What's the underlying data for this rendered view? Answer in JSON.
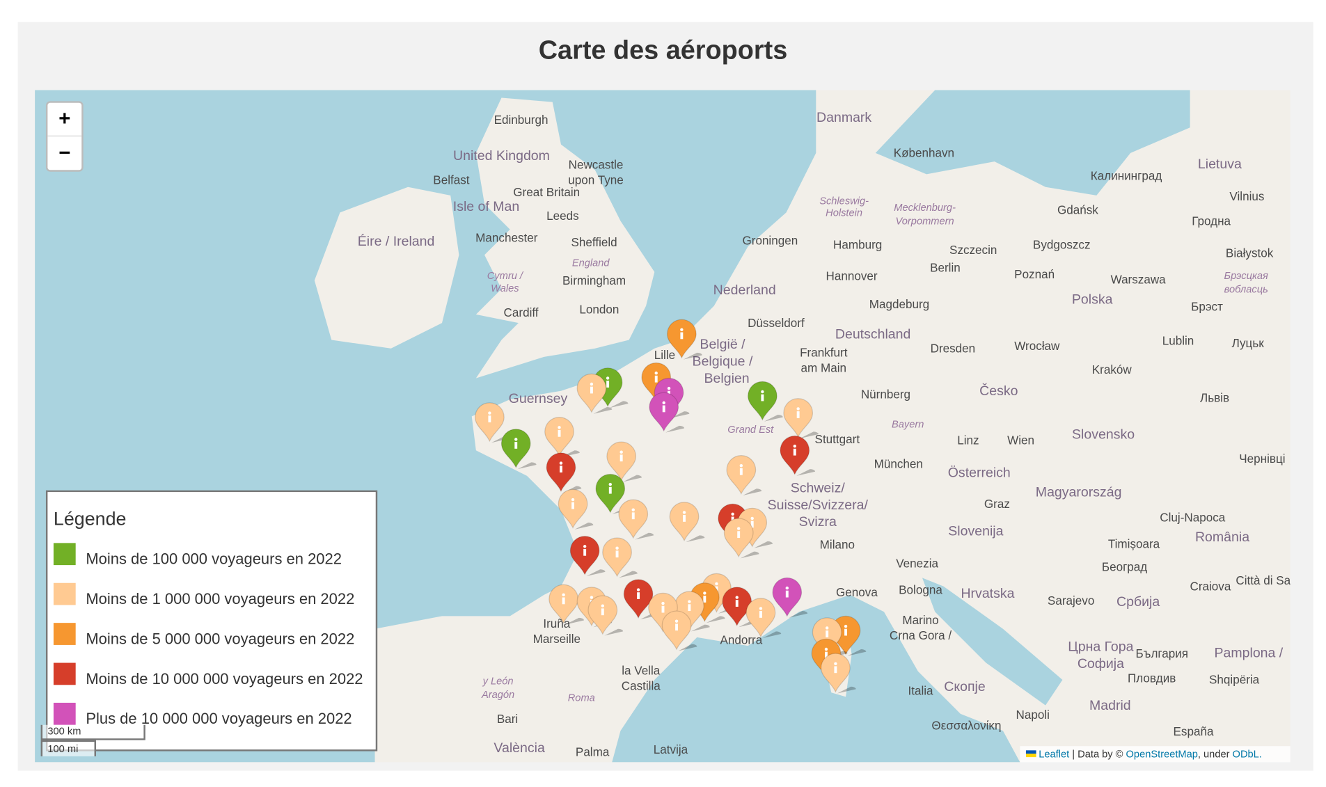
{
  "header": {
    "title": "Carte des aéroports"
  },
  "map": {
    "zoom_controls": [
      "+",
      "−"
    ],
    "labels": [
      "Edinburgh",
      "United Kingdom",
      "Newcastle",
      "upon Tyne",
      "Belfast",
      "Great Britain",
      "Isle of Man",
      "Leeds",
      "Éire / Ireland",
      "Manchester",
      "Sheffield",
      "England",
      "Cymru /",
      "Wales",
      "Birmingham",
      "London",
      "Cardiff",
      "Danmark",
      "København",
      "Schleswig-",
      "Holstein",
      "Mecklenburg-",
      "Vorpommern",
      "Калининград",
      "Lietuva",
      "Vilnius",
      "Gdańsk",
      "Гродна",
      "Groningen",
      "Hamburg",
      "Szczecin",
      "Bydgoszcz",
      "Białystok",
      "Berlin",
      "Hannover",
      "Poznań",
      "Warszawa",
      "Брэсцкая",
      "вобласць",
      "Nederland",
      "Magdeburg",
      "Polska",
      "Брэст",
      "Düsseldorf",
      "Deutschland",
      "België /",
      "Belgique /",
      "Belgien",
      "Lille",
      "Frankfurt",
      "am Main",
      "Dresden",
      "Wrocław",
      "Lublin",
      "Луцьк",
      "Kraków",
      "Česko",
      "Nürnberg",
      "Львів",
      "Guernsey",
      "Bayern",
      "Grand Est",
      "Stuttgart",
      "Linz",
      "Wien",
      "Slovensko",
      "Чернівці",
      "München",
      "Österreich",
      "Schweiz/",
      "Suisse/Svizzera/",
      "Svizra",
      "Magyarország",
      "Graz",
      "Cluj-Napoca",
      "Slovenija",
      "Milano",
      "România",
      "Timișoara",
      "Venezia",
      "Београд",
      "Genova",
      "Bologna",
      "Hrvatska",
      "Sarajevo",
      "Србија",
      "Craiova",
      "Città di San",
      "Marino",
      "Crna Gora /",
      "Црна Гора",
      "Софија",
      "България",
      "Pamplona /",
      "Iruña",
      "Marseille",
      "Andorra",
      "la Vella",
      "Castilla",
      "y León",
      "Aragón",
      "Roma",
      "Italia",
      "Скопје",
      "Пловдив",
      "Shqipëria",
      "Madrid",
      "Bari",
      "Napoli",
      "Θεσσαλονίκη",
      "España",
      "València",
      "Palma",
      "Latvija"
    ],
    "scale": [
      "300 km",
      "100 mi"
    ],
    "attribution": {
      "leaflet": "Leaflet",
      "data_by": " | Data by © ",
      "osm": "OpenStreetMap",
      "under": ", under ",
      "odbl": "ODbL."
    }
  },
  "legend": {
    "title": "Légende",
    "items": [
      {
        "label": "Moins de 100 000 voyageurs en 2022",
        "color": "#72b026"
      },
      {
        "label": "Moins de 1 000 000 voyageurs en 2022",
        "color": "#ffca92"
      },
      {
        "label": "Moins de 5 000 000 voyageurs en 2022",
        "color": "#f69730"
      },
      {
        "label": "Moins de 10 000 000 voyageurs en 2022",
        "color": "#d63e2a"
      },
      {
        "label": "Plus de 10 000 000 voyageurs en 2022",
        "color": "#d252b9"
      }
    ]
  }
}
